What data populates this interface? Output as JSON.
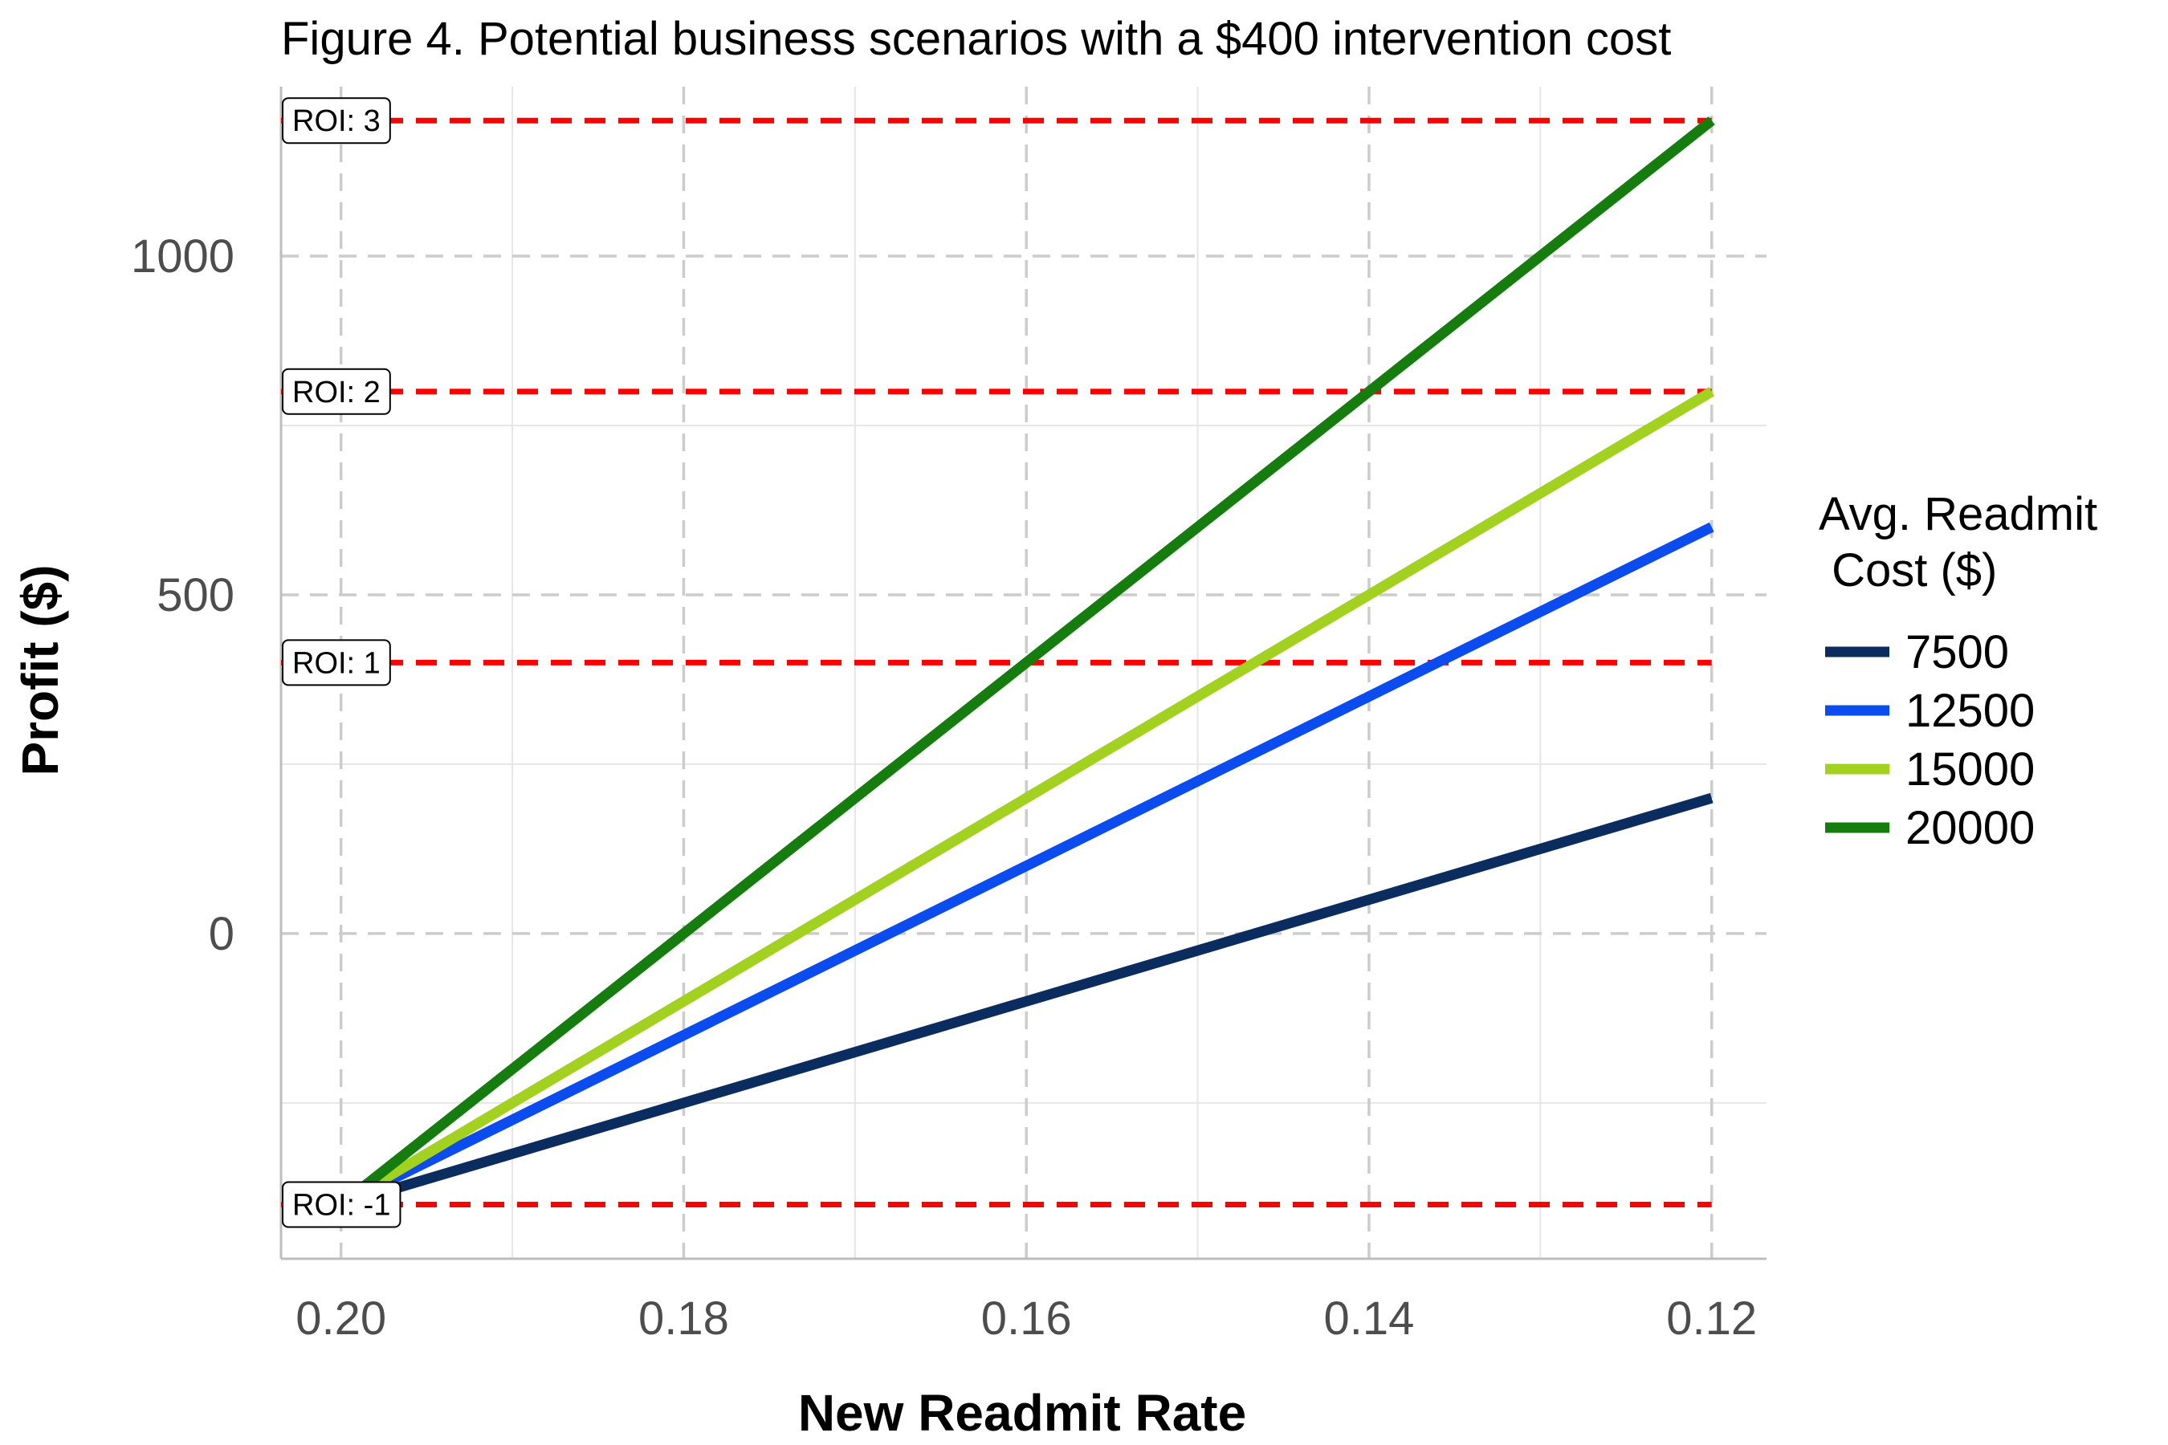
{
  "chart_data": {
    "type": "line",
    "title": "Figure 4. Potential business scenarios with a $400 intervention cost",
    "xlabel": "New Readmit Rate",
    "ylabel": "Profit ($)",
    "x_reversed": true,
    "xlim": [
      0.2035,
      0.1168
    ],
    "ylim": [
      -480,
      1250
    ],
    "x_ticks": [
      0.2,
      0.18,
      0.16,
      0.14,
      0.12
    ],
    "x_tick_labels": [
      "0.20",
      "0.18",
      "0.16",
      "0.14",
      "0.12"
    ],
    "y_ticks": [
      0,
      500,
      1000
    ],
    "y_tick_labels": [
      "0",
      "500",
      "1000"
    ],
    "grid": true,
    "legend": {
      "title_lines": [
        "Avg. Readmit",
        " Cost ($)"
      ],
      "position": "right"
    },
    "series": [
      {
        "name": "7500",
        "color": "#0b2c5e",
        "x": [
          0.2,
          0.12
        ],
        "y": [
          -400,
          200
        ]
      },
      {
        "name": "12500",
        "color": "#0a4cf0",
        "x": [
          0.2,
          0.12
        ],
        "y": [
          -400,
          600
        ]
      },
      {
        "name": "15000",
        "color": "#a2d11f",
        "x": [
          0.2,
          0.12
        ],
        "y": [
          -400,
          800
        ]
      },
      {
        "name": "20000",
        "color": "#147d0e",
        "x": [
          0.2,
          0.12
        ],
        "y": [
          -400,
          1200
        ]
      }
    ],
    "reference_lines": [
      {
        "label": "ROI: 3",
        "y": 1200,
        "color": "#ff0000"
      },
      {
        "label": "ROI: 2",
        "y": 800,
        "color": "#ff0000"
      },
      {
        "label": "ROI: 1",
        "y": 400,
        "color": "#ff0000"
      },
      {
        "label": "ROI: -1",
        "y": -400,
        "color": "#ff0000"
      }
    ]
  }
}
